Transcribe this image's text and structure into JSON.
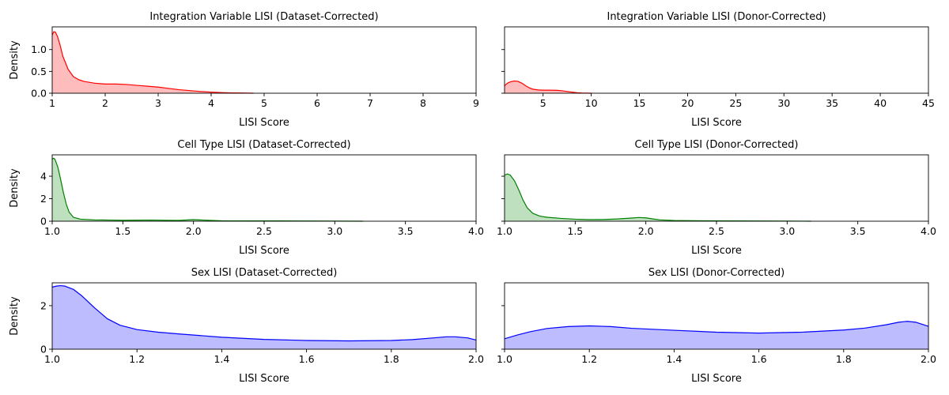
{
  "chart_data": [
    {
      "type": "area",
      "title": "Integration Variable LISI (Dataset-Corrected)",
      "xlabel": "LISI Score",
      "ylabel": "Density",
      "xlim": [
        1,
        9
      ],
      "ylim": [
        0,
        1.52
      ],
      "xticks": [
        1,
        2,
        3,
        4,
        5,
        6,
        7,
        8,
        9
      ],
      "yticks": [
        0.0,
        0.5,
        1.0
      ],
      "show_ytick_labels": true,
      "color": "#ff0000",
      "fill": "#ffbcbc",
      "series": [
        {
          "name": "density",
          "x": [
            1.0,
            1.03,
            1.06,
            1.1,
            1.15,
            1.2,
            1.3,
            1.4,
            1.5,
            1.6,
            1.8,
            2.0,
            2.2,
            2.4,
            2.6,
            2.8,
            3.0,
            3.2,
            3.4,
            3.6,
            3.8,
            4.0,
            4.2,
            4.4,
            4.6,
            4.8
          ],
          "y": [
            1.33,
            1.41,
            1.4,
            1.3,
            1.1,
            0.85,
            0.55,
            0.38,
            0.31,
            0.27,
            0.23,
            0.21,
            0.21,
            0.2,
            0.18,
            0.16,
            0.14,
            0.11,
            0.08,
            0.06,
            0.04,
            0.025,
            0.015,
            0.008,
            0.004,
            0.0
          ]
        }
      ]
    },
    {
      "type": "area",
      "title": "Integration Variable LISI (Donor-Corrected)",
      "xlabel": "LISI Score",
      "ylabel": "",
      "xlim": [
        1,
        45
      ],
      "ylim": [
        0,
        1.52
      ],
      "xticks": [
        5,
        10,
        15,
        20,
        25,
        30,
        35,
        40,
        45
      ],
      "yticks": [
        0.0,
        0.5,
        1.0
      ],
      "show_ytick_labels": false,
      "color": "#ff0000",
      "fill": "#ffbcbc",
      "series": [
        {
          "name": "density",
          "x": [
            1.0,
            1.3,
            1.6,
            2.0,
            2.4,
            2.8,
            3.2,
            3.6,
            4.0,
            4.5,
            5.0,
            5.5,
            6.0,
            6.5,
            7.0,
            7.5,
            8.0,
            8.5,
            9.0,
            9.5,
            10.0
          ],
          "y": [
            0.17,
            0.23,
            0.26,
            0.28,
            0.27,
            0.23,
            0.17,
            0.12,
            0.09,
            0.075,
            0.07,
            0.07,
            0.068,
            0.065,
            0.055,
            0.04,
            0.025,
            0.012,
            0.005,
            0.002,
            0.0
          ]
        }
      ]
    },
    {
      "type": "area",
      "title": "Cell Type LISI (Dataset-Corrected)",
      "xlabel": "LISI Score",
      "ylabel": "Density",
      "xlim": [
        1,
        4
      ],
      "ylim": [
        0,
        5.9
      ],
      "xticks": [
        1.0,
        1.5,
        2.0,
        2.5,
        3.0,
        3.5,
        4.0
      ],
      "yticks": [
        0,
        2,
        4
      ],
      "show_ytick_labels": true,
      "color": "#008000",
      "fill": "#bfe0bf",
      "series": [
        {
          "name": "density",
          "x": [
            1.0,
            1.01,
            1.02,
            1.04,
            1.06,
            1.08,
            1.1,
            1.12,
            1.15,
            1.2,
            1.3,
            1.4,
            1.5,
            1.6,
            1.7,
            1.8,
            1.9,
            2.0,
            2.1,
            2.2,
            2.4,
            2.6,
            2.8,
            3.0,
            3.2
          ],
          "y": [
            5.5,
            5.6,
            5.5,
            4.8,
            3.7,
            2.5,
            1.5,
            0.8,
            0.35,
            0.18,
            0.12,
            0.1,
            0.08,
            0.09,
            0.1,
            0.08,
            0.07,
            0.14,
            0.08,
            0.04,
            0.03,
            0.025,
            0.02,
            0.01,
            0.0
          ]
        }
      ]
    },
    {
      "type": "area",
      "title": "Cell Type LISI (Donor-Corrected)",
      "xlabel": "LISI Score",
      "ylabel": "",
      "xlim": [
        1,
        4
      ],
      "ylim": [
        0,
        5.9
      ],
      "xticks": [
        1.0,
        1.5,
        2.0,
        2.5,
        3.0,
        3.5,
        4.0
      ],
      "yticks": [
        0,
        2,
        4
      ],
      "show_ytick_labels": false,
      "color": "#008000",
      "fill": "#bfe0bf",
      "series": [
        {
          "name": "density",
          "x": [
            1.0,
            1.02,
            1.04,
            1.07,
            1.1,
            1.13,
            1.16,
            1.2,
            1.25,
            1.3,
            1.4,
            1.5,
            1.6,
            1.7,
            1.8,
            1.9,
            1.95,
            2.0,
            2.05,
            2.1,
            2.2,
            2.4,
            2.6,
            2.8,
            3.0,
            3.17
          ],
          "y": [
            4.1,
            4.2,
            4.1,
            3.6,
            2.8,
            1.9,
            1.2,
            0.7,
            0.45,
            0.35,
            0.25,
            0.18,
            0.14,
            0.15,
            0.2,
            0.28,
            0.33,
            0.3,
            0.2,
            0.12,
            0.06,
            0.04,
            0.03,
            0.02,
            0.01,
            0.0
          ]
        }
      ]
    },
    {
      "type": "area",
      "title": "Sex LISI (Dataset-Corrected)",
      "xlabel": "LISI Score",
      "ylabel": "Density",
      "xlim": [
        1,
        2
      ],
      "ylim": [
        0,
        3.05
      ],
      "xticks": [
        1.0,
        1.2,
        1.4,
        1.6,
        1.8,
        2.0
      ],
      "yticks": [
        0,
        2
      ],
      "show_ytick_labels": true,
      "color": "#0000ff",
      "fill": "#bcbcff",
      "series": [
        {
          "name": "density",
          "x": [
            1.0,
            1.01,
            1.02,
            1.03,
            1.05,
            1.07,
            1.1,
            1.13,
            1.16,
            1.2,
            1.25,
            1.3,
            1.4,
            1.5,
            1.6,
            1.7,
            1.8,
            1.85,
            1.9,
            1.93,
            1.95,
            1.98,
            2.0
          ],
          "y": [
            2.85,
            2.9,
            2.92,
            2.9,
            2.75,
            2.45,
            1.9,
            1.4,
            1.1,
            0.9,
            0.78,
            0.7,
            0.55,
            0.45,
            0.4,
            0.38,
            0.4,
            0.44,
            0.52,
            0.57,
            0.57,
            0.52,
            0.42
          ]
        }
      ]
    },
    {
      "type": "area",
      "title": "Sex LISI (Donor-Corrected)",
      "xlabel": "LISI Score",
      "ylabel": "",
      "xlim": [
        1,
        2
      ],
      "ylim": [
        0,
        3.05
      ],
      "xticks": [
        1.0,
        1.2,
        1.4,
        1.6,
        1.8,
        2.0
      ],
      "yticks": [
        0,
        2
      ],
      "show_ytick_labels": false,
      "color": "#0000ff",
      "fill": "#bcbcff",
      "series": [
        {
          "name": "density",
          "x": [
            1.0,
            1.03,
            1.06,
            1.1,
            1.15,
            1.2,
            1.25,
            1.3,
            1.4,
            1.5,
            1.6,
            1.7,
            1.8,
            1.85,
            1.9,
            1.93,
            1.95,
            1.97,
            2.0
          ],
          "y": [
            0.48,
            0.65,
            0.8,
            0.95,
            1.04,
            1.07,
            1.04,
            0.96,
            0.87,
            0.78,
            0.74,
            0.78,
            0.88,
            0.97,
            1.12,
            1.24,
            1.28,
            1.24,
            1.05
          ]
        }
      ]
    }
  ]
}
